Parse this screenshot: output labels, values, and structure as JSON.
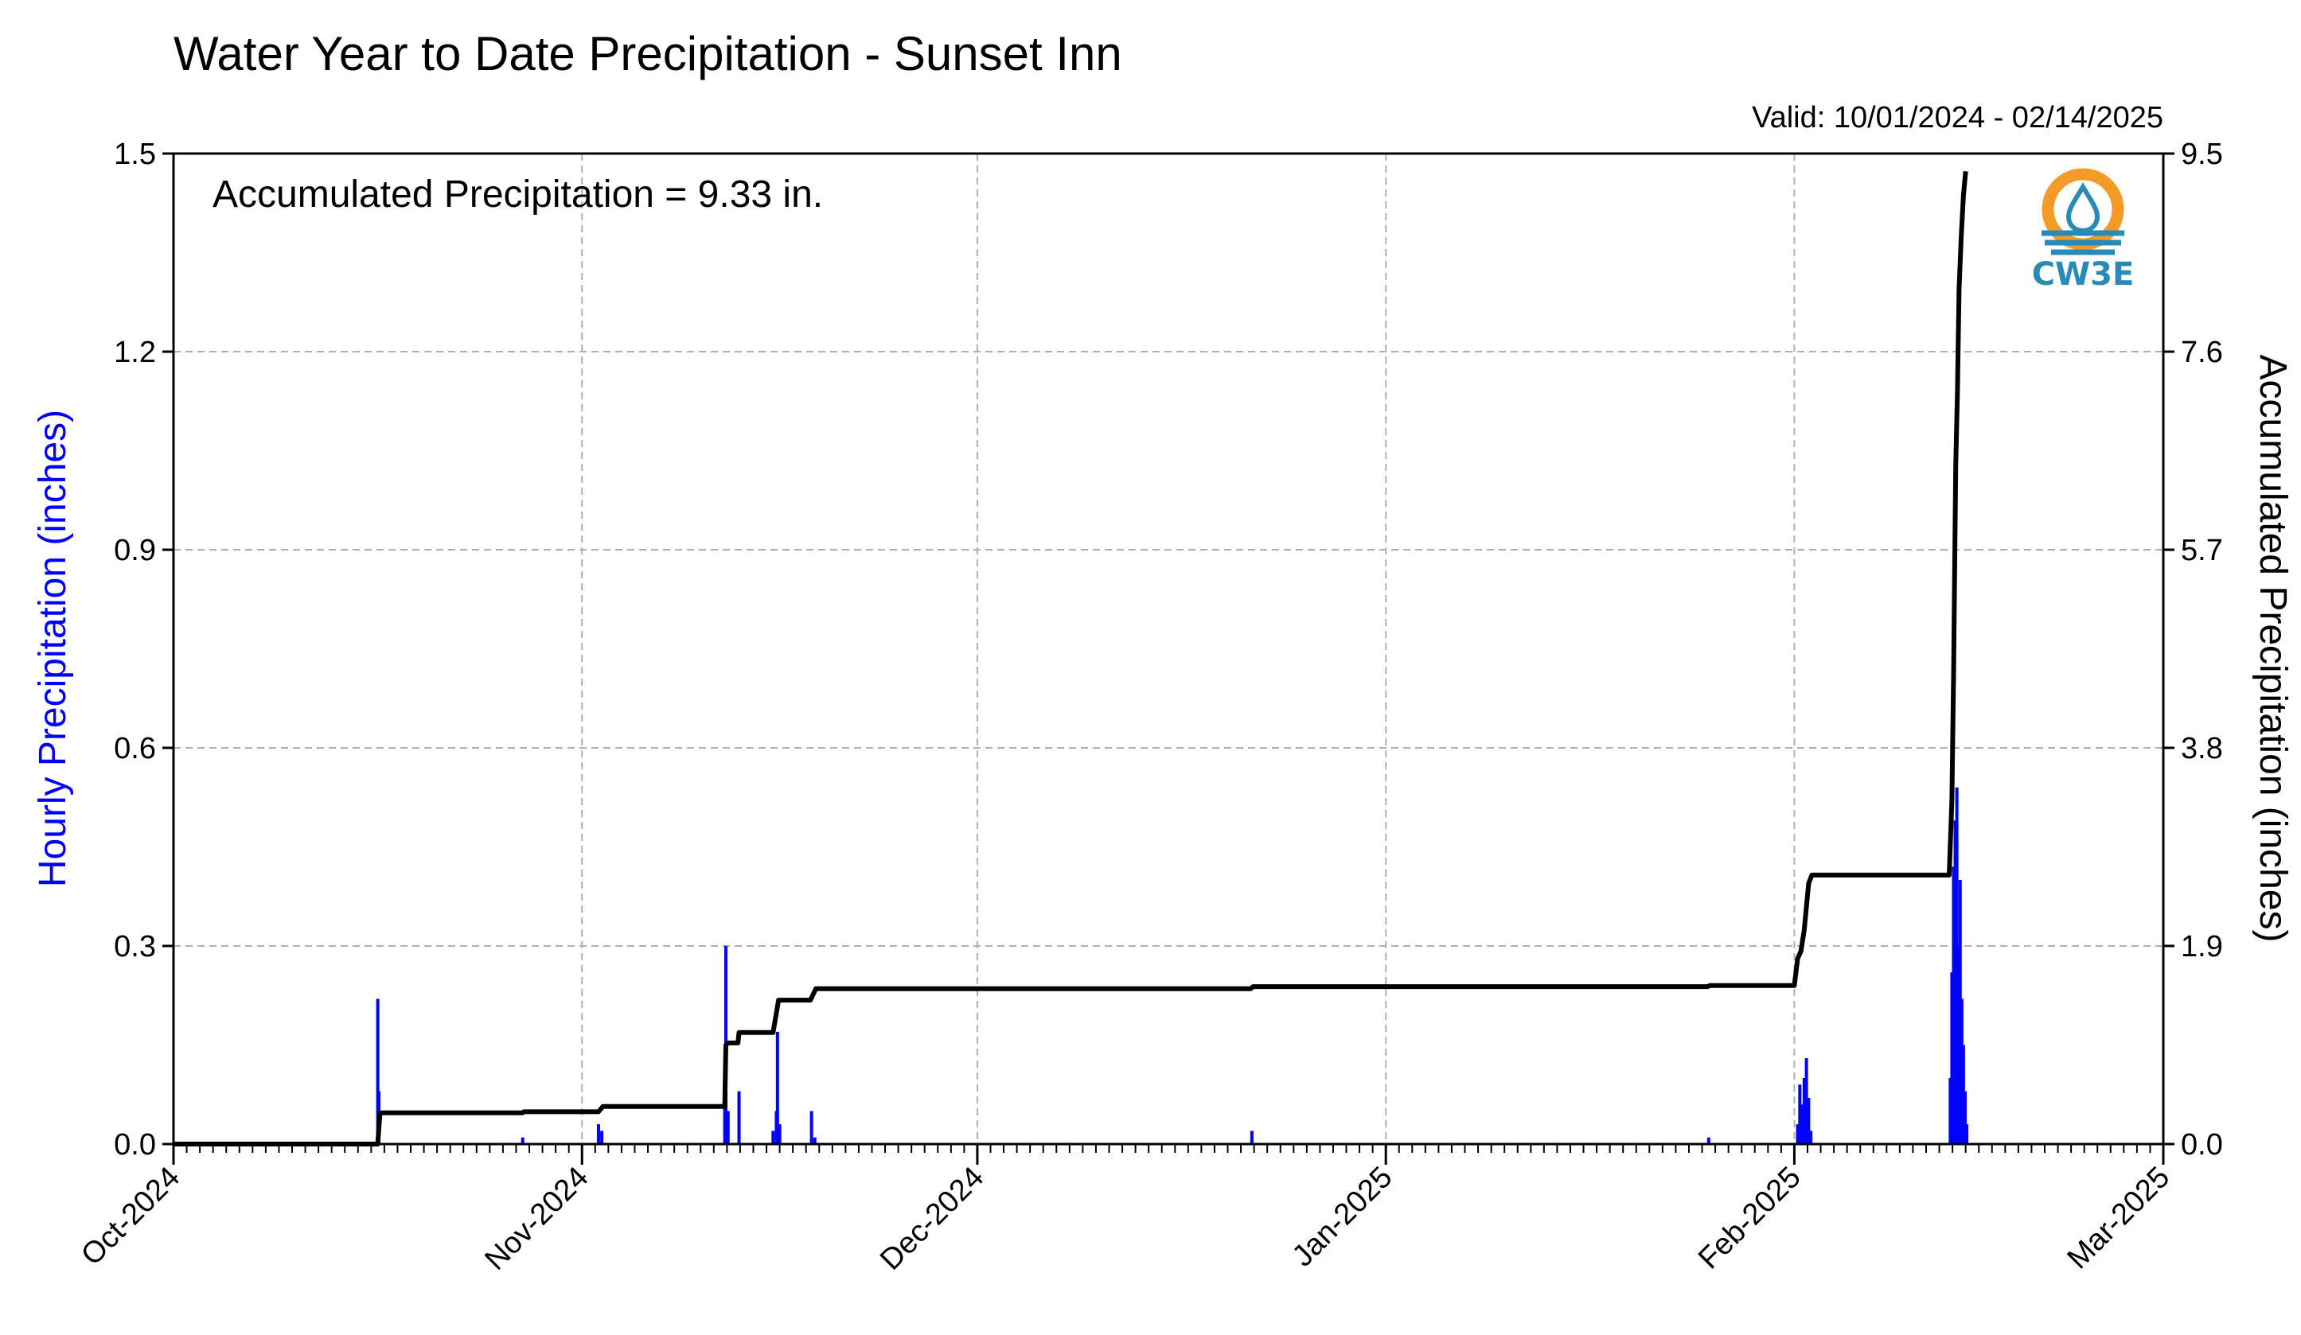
{
  "chart_data": {
    "type": "bar",
    "title": "Water Year to Date Precipitation - Sunset Inn",
    "subtitle": "Valid: 10/01/2024 - 02/14/2025",
    "annotation": "Accumulated Precipitation = 9.33 in.",
    "ylabel": "Hourly Precipitation (inches)",
    "y2label": "Accumulated Precipitation (inches)",
    "ylim": [
      0,
      1.5
    ],
    "y2lim": [
      0,
      9.5
    ],
    "xlim": [
      "2024-10-01",
      "2025-03-01"
    ],
    "y_ticks": [
      "0.0",
      "0.3",
      "0.6",
      "0.9",
      "1.2",
      "1.5"
    ],
    "y2_ticks": [
      "0.0",
      "1.9",
      "3.8",
      "5.7",
      "7.6",
      "9.5"
    ],
    "x_ticks": [
      "Oct-2024",
      "Nov-2024",
      "Dec-2024",
      "Jan-2025",
      "Feb-2025",
      "Mar-2025"
    ],
    "grid": true,
    "colors": {
      "hourly": "#0000ff",
      "accumulated": "#000000",
      "grid": "#b0b0b0"
    },
    "series": [
      {
        "name": "Hourly Precipitation",
        "type": "bar",
        "axis": "left",
        "points": [
          {
            "x": "2024-10-16T12",
            "y": 0.22
          },
          {
            "x": "2024-10-16T14",
            "y": 0.08
          },
          {
            "x": "2024-10-27T12",
            "y": 0.01
          },
          {
            "x": "2024-11-02T06",
            "y": 0.03
          },
          {
            "x": "2024-11-02T12",
            "y": 0.02
          },
          {
            "x": "2024-11-11T20",
            "y": 0.08
          },
          {
            "x": "2024-11-11T22",
            "y": 0.3
          },
          {
            "x": "2024-11-12T02",
            "y": 0.05
          },
          {
            "x": "2024-11-12T22",
            "y": 0.08
          },
          {
            "x": "2024-11-15T12",
            "y": 0.02
          },
          {
            "x": "2024-11-15T18",
            "y": 0.05
          },
          {
            "x": "2024-11-15T20",
            "y": 0.17
          },
          {
            "x": "2024-11-16T00",
            "y": 0.03
          },
          {
            "x": "2024-11-18T10",
            "y": 0.05
          },
          {
            "x": "2024-11-18T16",
            "y": 0.01
          },
          {
            "x": "2024-12-21T20",
            "y": 0.02
          },
          {
            "x": "2025-01-25T12",
            "y": 0.01
          },
          {
            "x": "2025-02-01T06",
            "y": 0.03
          },
          {
            "x": "2025-02-01T10",
            "y": 0.09
          },
          {
            "x": "2025-02-01T14",
            "y": 0.06
          },
          {
            "x": "2025-02-01T18",
            "y": 0.1
          },
          {
            "x": "2025-02-01T22",
            "y": 0.13
          },
          {
            "x": "2025-02-02T02",
            "y": 0.07
          },
          {
            "x": "2025-02-02T06",
            "y": 0.02
          },
          {
            "x": "2025-02-12T20",
            "y": 0.1
          },
          {
            "x": "2025-02-12T23",
            "y": 0.26
          },
          {
            "x": "2025-02-13T02",
            "y": 0.42
          },
          {
            "x": "2025-02-13T05",
            "y": 0.49
          },
          {
            "x": "2025-02-13T08",
            "y": 0.54
          },
          {
            "x": "2025-02-13T11",
            "y": 0.3
          },
          {
            "x": "2025-02-13T14",
            "y": 0.4
          },
          {
            "x": "2025-02-13T17",
            "y": 0.22
          },
          {
            "x": "2025-02-13T20",
            "y": 0.15
          },
          {
            "x": "2025-02-13T23",
            "y": 0.08
          },
          {
            "x": "2025-02-14T02",
            "y": 0.03
          }
        ]
      },
      {
        "name": "Accumulated Precipitation",
        "type": "line",
        "axis": "right",
        "points": [
          {
            "x": "2024-10-01T00",
            "y": 0.0
          },
          {
            "x": "2024-10-16T12",
            "y": 0.0
          },
          {
            "x": "2024-10-16T16",
            "y": 0.3
          },
          {
            "x": "2024-10-27T12",
            "y": 0.3
          },
          {
            "x": "2024-10-27T14",
            "y": 0.31
          },
          {
            "x": "2024-11-02T06",
            "y": 0.31
          },
          {
            "x": "2024-11-02T14",
            "y": 0.36
          },
          {
            "x": "2024-11-11T20",
            "y": 0.36
          },
          {
            "x": "2024-11-11T22",
            "y": 0.95
          },
          {
            "x": "2024-11-12T02",
            "y": 0.97
          },
          {
            "x": "2024-11-12T20",
            "y": 0.97
          },
          {
            "x": "2024-11-12T22",
            "y": 1.07
          },
          {
            "x": "2024-11-15T12",
            "y": 1.07
          },
          {
            "x": "2024-11-15T22",
            "y": 1.38
          },
          {
            "x": "2024-11-18T08",
            "y": 1.38
          },
          {
            "x": "2024-11-18T18",
            "y": 1.49
          },
          {
            "x": "2024-12-21T18",
            "y": 1.49
          },
          {
            "x": "2024-12-21T22",
            "y": 1.51
          },
          {
            "x": "2025-01-25T10",
            "y": 1.51
          },
          {
            "x": "2025-01-25T14",
            "y": 1.52
          },
          {
            "x": "2025-02-01T00",
            "y": 1.52
          },
          {
            "x": "2025-02-01T06",
            "y": 1.78
          },
          {
            "x": "2025-02-01T12",
            "y": 1.85
          },
          {
            "x": "2025-02-01T18",
            "y": 2.05
          },
          {
            "x": "2025-02-02T02",
            "y": 2.5
          },
          {
            "x": "2025-02-02T08",
            "y": 2.58
          },
          {
            "x": "2025-02-12T18",
            "y": 2.58
          },
          {
            "x": "2025-02-12T23",
            "y": 3.3
          },
          {
            "x": "2025-02-13T02",
            "y": 4.5
          },
          {
            "x": "2025-02-13T06",
            "y": 6.5
          },
          {
            "x": "2025-02-13T09",
            "y": 7.2
          },
          {
            "x": "2025-02-13T12",
            "y": 8.2
          },
          {
            "x": "2025-02-13T16",
            "y": 8.7
          },
          {
            "x": "2025-02-13T20",
            "y": 9.1
          },
          {
            "x": "2025-02-14T00",
            "y": 9.33
          }
        ]
      }
    ]
  },
  "logo": {
    "text": "CW3E",
    "ring_color": "#f39a27",
    "ring_color_top": "#f6a623",
    "wave_color": "#2a8ab7",
    "drop_color": "#2a8ab7"
  }
}
